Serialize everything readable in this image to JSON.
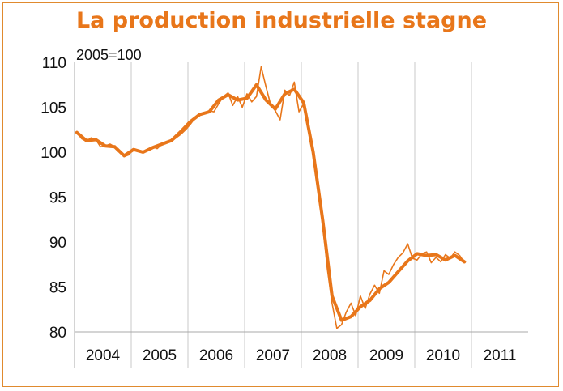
{
  "chart_data": {
    "type": "line",
    "title": "La production industrielle stagne",
    "unit_label": "2005=100",
    "ylim": [
      80,
      110
    ],
    "y_ticks": [
      80,
      85,
      90,
      95,
      100,
      105,
      110
    ],
    "x_range": [
      "2004-01",
      "2011-12"
    ],
    "x_tick_labels": [
      "2004",
      "2005",
      "2006",
      "2007",
      "2008",
      "2009",
      "2010",
      "2011"
    ],
    "grid": "vertical",
    "line_color": "#e8761a",
    "series": [
      {
        "style": "thick",
        "x": [
          "2004-01",
          "2004-03",
          "2004-05",
          "2004-07",
          "2004-09",
          "2004-11",
          "2005-01",
          "2005-03",
          "2005-05",
          "2005-07",
          "2005-09",
          "2005-11",
          "2006-01",
          "2006-03",
          "2006-05",
          "2006-07",
          "2006-09",
          "2006-11",
          "2007-01",
          "2007-03",
          "2007-05",
          "2007-07",
          "2007-09",
          "2007-11",
          "2008-01",
          "2008-03",
          "2008-05",
          "2008-07",
          "2008-09",
          "2008-11",
          "2009-01",
          "2009-03",
          "2009-05",
          "2009-07",
          "2009-09",
          "2009-11",
          "2010-01",
          "2010-03",
          "2010-05",
          "2010-07",
          "2010-09",
          "2010-11"
        ],
        "y": [
          102.2,
          101.3,
          101.4,
          100.7,
          100.6,
          99.6,
          100.3,
          100.0,
          100.5,
          100.9,
          101.3,
          102.3,
          103.4,
          104.2,
          104.5,
          105.8,
          106.4,
          105.8,
          106.0,
          107.5,
          105.8,
          104.8,
          106.5,
          107.0,
          105.5,
          100.0,
          92.5,
          84.0,
          81.3,
          81.7,
          82.8,
          83.5,
          84.8,
          85.5,
          86.7,
          87.9,
          88.7,
          88.5,
          88.6,
          88.0,
          88.5,
          87.8
        ]
      },
      {
        "style": "thin",
        "x": [
          "2004-01",
          "2004-02",
          "2004-03",
          "2004-04",
          "2004-05",
          "2004-06",
          "2004-07",
          "2004-08",
          "2004-09",
          "2004-10",
          "2004-11",
          "2004-12",
          "2005-01",
          "2005-02",
          "2005-03",
          "2005-04",
          "2005-05",
          "2005-06",
          "2005-07",
          "2005-08",
          "2005-09",
          "2005-10",
          "2005-11",
          "2005-12",
          "2006-01",
          "2006-02",
          "2006-03",
          "2006-04",
          "2006-05",
          "2006-06",
          "2006-07",
          "2006-08",
          "2006-09",
          "2006-10",
          "2006-11",
          "2006-12",
          "2007-01",
          "2007-02",
          "2007-03",
          "2007-04",
          "2007-05",
          "2007-06",
          "2007-07",
          "2007-08",
          "2007-09",
          "2007-10",
          "2007-11",
          "2007-12",
          "2008-01",
          "2008-02",
          "2008-03",
          "2008-04",
          "2008-05",
          "2008-06",
          "2008-07",
          "2008-08",
          "2008-09",
          "2008-10",
          "2008-11",
          "2008-12",
          "2009-01",
          "2009-02",
          "2009-03",
          "2009-04",
          "2009-05",
          "2009-06",
          "2009-07",
          "2009-08",
          "2009-09",
          "2009-10",
          "2009-11",
          "2009-12",
          "2010-01",
          "2010-02",
          "2010-03",
          "2010-04",
          "2010-05",
          "2010-06",
          "2010-07",
          "2010-08",
          "2010-09",
          "2010-10",
          "2010-11"
        ],
        "y": [
          102.2,
          101.5,
          101.2,
          101.6,
          101.4,
          100.6,
          100.7,
          100.9,
          100.6,
          100.0,
          99.5,
          99.7,
          100.4,
          100.2,
          100.0,
          100.3,
          100.6,
          100.4,
          100.9,
          101.2,
          101.2,
          101.6,
          102.0,
          102.5,
          103.1,
          103.8,
          104.3,
          104.4,
          104.6,
          104.5,
          105.4,
          106.2,
          106.6,
          105.2,
          106.2,
          105.0,
          106.5,
          105.6,
          106.2,
          109.5,
          107.3,
          105.3,
          104.6,
          103.6,
          106.9,
          106.3,
          107.8,
          104.5,
          105.4,
          103.0,
          100.2,
          97.0,
          92.0,
          87.0,
          83.2,
          80.4,
          80.8,
          82.2,
          83.2,
          81.8,
          84.0,
          82.6,
          84.2,
          85.2,
          84.3,
          86.8,
          86.4,
          87.5,
          88.3,
          88.8,
          89.8,
          88.2,
          88.0,
          88.7,
          88.9,
          87.7,
          88.3,
          87.8,
          88.6,
          88.2,
          88.9,
          88.5,
          87.7
        ]
      }
    ]
  }
}
